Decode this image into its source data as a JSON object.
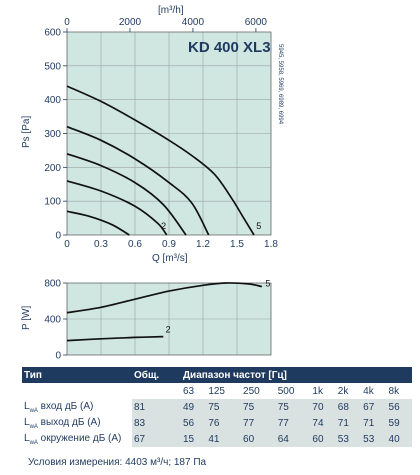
{
  "colors": {
    "plot_bg": "#cfe6e1",
    "text": "#1f3a5f",
    "header_bg": "#1f3a5f",
    "cell_bg": "#d9e1e1"
  },
  "chart_data": [
    {
      "type": "line",
      "model_label": "KD 400 XL3",
      "side_label": "5945, 5958, 5969, 6989, 6994",
      "top_axis": {
        "label": "[m³/h]",
        "ticks": [
          "0",
          "2000",
          "4000",
          "6000"
        ]
      },
      "xlabel": "Q [m³/s]",
      "ylabel": "Ps [Pa]",
      "x_ticks": [
        "0",
        "0.3",
        "0.6",
        "0.9",
        "1.2",
        "1.5",
        "1.8"
      ],
      "y_ticks": [
        "0",
        "100",
        "200",
        "300",
        "400",
        "500",
        "600"
      ],
      "xlim": [
        0,
        1.8
      ],
      "ylim": [
        0,
        600
      ],
      "grid": true,
      "series": [
        {
          "name": "",
          "points": [
            [
              0,
              440
            ],
            [
              0.3,
              395
            ],
            [
              0.6,
              340
            ],
            [
              0.9,
              280
            ],
            [
              1.1,
              235
            ],
            [
              1.3,
              180
            ],
            [
              1.45,
              110
            ],
            [
              1.55,
              55
            ],
            [
              1.65,
              0
            ]
          ]
        },
        {
          "name": "",
          "points": [
            [
              0,
              320
            ],
            [
              0.3,
              280
            ],
            [
              0.6,
              225
            ],
            [
              0.9,
              155
            ],
            [
              1.1,
              95
            ],
            [
              1.25,
              0
            ]
          ]
        },
        {
          "name": "",
          "points": [
            [
              0,
              240
            ],
            [
              0.3,
              205
            ],
            [
              0.6,
              155
            ],
            [
              0.85,
              90
            ],
            [
              1.05,
              0
            ]
          ]
        },
        {
          "name": "",
          "points": [
            [
              0,
              160
            ],
            [
              0.3,
              130
            ],
            [
              0.6,
              85
            ],
            [
              0.8,
              35
            ],
            [
              0.88,
              0
            ]
          ]
        },
        {
          "name": "",
          "points": [
            [
              0,
              70
            ],
            [
              0.2,
              55
            ],
            [
              0.4,
              30
            ],
            [
              0.55,
              0
            ]
          ]
        }
      ],
      "curve_labels": [
        {
          "text": "2",
          "x": 0.83,
          "y": 12
        },
        {
          "text": "5",
          "x": 1.67,
          "y": 12
        }
      ]
    },
    {
      "type": "line",
      "ylabel": "P [W]",
      "y_ticks": [
        "0",
        "400",
        "800"
      ],
      "xlim": [
        0,
        1.8
      ],
      "ylim": [
        0,
        800
      ],
      "grid": true,
      "series": [
        {
          "name": "",
          "points": [
            [
              0,
              470
            ],
            [
              0.3,
              530
            ],
            [
              0.6,
              620
            ],
            [
              0.9,
              710
            ],
            [
              1.2,
              775
            ],
            [
              1.4,
              800
            ],
            [
              1.6,
              790
            ],
            [
              1.72,
              760
            ]
          ]
        },
        {
          "name": "",
          "points": [
            [
              0,
              160
            ],
            [
              0.3,
              180
            ],
            [
              0.6,
              195
            ],
            [
              0.85,
              205
            ]
          ]
        }
      ],
      "curve_labels": [
        {
          "text": "5",
          "x": 1.75,
          "y": 760
        },
        {
          "text": "2",
          "x": 0.87,
          "y": 250
        }
      ]
    },
    {
      "type": "table",
      "header": {
        "type": "Тип",
        "total": "Общ.",
        "range": "Диапазон частот [Гц]"
      },
      "frequencies": [
        "63",
        "125",
        "250",
        "500",
        "1k",
        "2k",
        "4k",
        "8k"
      ],
      "rows": [
        {
          "main": "L",
          "sub": "wA",
          "rest": " вход дБ (А)",
          "total": "81",
          "values": [
            "49",
            "75",
            "75",
            "75",
            "70",
            "68",
            "67",
            "56"
          ]
        },
        {
          "main": "L",
          "sub": "wA",
          "rest": " выход дБ (А)",
          "total": "83",
          "values": [
            "56",
            "76",
            "77",
            "77",
            "74",
            "71",
            "71",
            "59"
          ]
        },
        {
          "main": "L",
          "sub": "wA",
          "rest": " окружение дБ (А)",
          "total": "67",
          "values": [
            "15",
            "41",
            "60",
            "64",
            "60",
            "53",
            "53",
            "40"
          ]
        }
      ],
      "conditions": "Условия измерения: 4403 м³/ч; 187 Па"
    }
  ]
}
